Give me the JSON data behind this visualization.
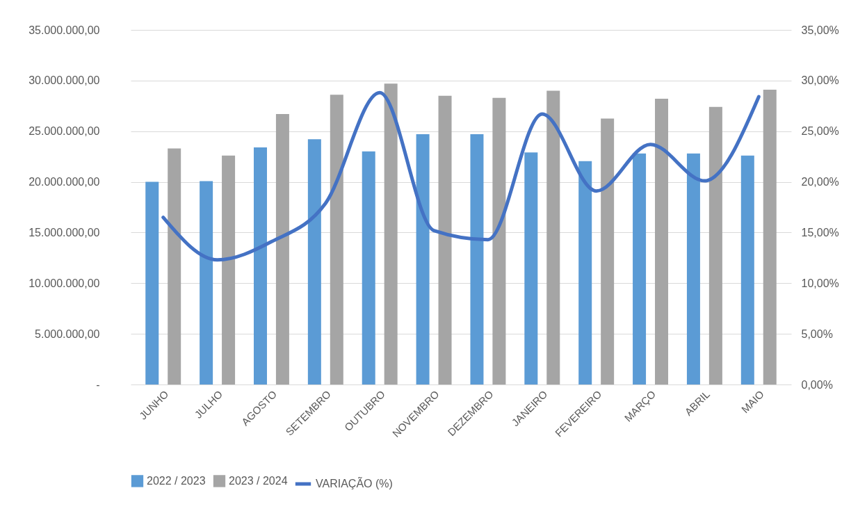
{
  "chart_data": {
    "type": "bar",
    "categories": [
      "JUNHO",
      "JULHO",
      "AGOSTO",
      "SETEMBRO",
      "OUTUBRO",
      "NOVEMBRO",
      "DEZEMBRO",
      "JANEIRO",
      "FEVEREIRO",
      "MARÇO",
      "ABRIL",
      "MAIO"
    ],
    "series": [
      {
        "name": "2022 / 2023",
        "color": "#5b9bd5",
        "values": [
          20000000,
          20070000,
          23400000,
          24200000,
          23000000,
          24700000,
          24700000,
          22900000,
          22050000,
          22800000,
          22800000,
          22600000
        ]
      },
      {
        "name": "2023 / 2024",
        "color": "#a5a5a5",
        "values": [
          23300000,
          22600000,
          26700000,
          28600000,
          29700000,
          28500000,
          28300000,
          29000000,
          26250000,
          28200000,
          27400000,
          29100000
        ]
      },
      {
        "name": "VARIAÇÃO (%)",
        "type": "line",
        "axis": "y2",
        "color": "#4472c4",
        "values": [
          16.5,
          12.3,
          14.1,
          17.9,
          28.8,
          15.2,
          14.3,
          26.7,
          19.1,
          23.7,
          20.1,
          28.4
        ]
      }
    ],
    "ylim": [
      0,
      35000000
    ],
    "yticks": [
      {
        "value": 0,
        "label": "-"
      },
      {
        "value": 5000000,
        "label": "5.000.000,00"
      },
      {
        "value": 10000000,
        "label": "10.000.000,00"
      },
      {
        "value": 15000000,
        "label": "15.000.000,00"
      },
      {
        "value": 20000000,
        "label": "20.000.000,00"
      },
      {
        "value": 25000000,
        "label": "25.000.000,00"
      },
      {
        "value": 30000000,
        "label": "30.000.000,00"
      },
      {
        "value": 35000000,
        "label": "35.000.000,00"
      }
    ],
    "y2lim": [
      0,
      35
    ],
    "y2ticks": [
      {
        "value": 0,
        "label": "0,00%"
      },
      {
        "value": 5,
        "label": "5,00%"
      },
      {
        "value": 10,
        "label": "10,00%"
      },
      {
        "value": 15,
        "label": "15,00%"
      },
      {
        "value": 20,
        "label": "20,00%"
      },
      {
        "value": 25,
        "label": "25,00%"
      },
      {
        "value": 30,
        "label": "30,00%"
      },
      {
        "value": 35,
        "label": "35,00%"
      }
    ],
    "grid": "y",
    "legend": "bottom",
    "marker": "none",
    "line_style": "solid"
  }
}
